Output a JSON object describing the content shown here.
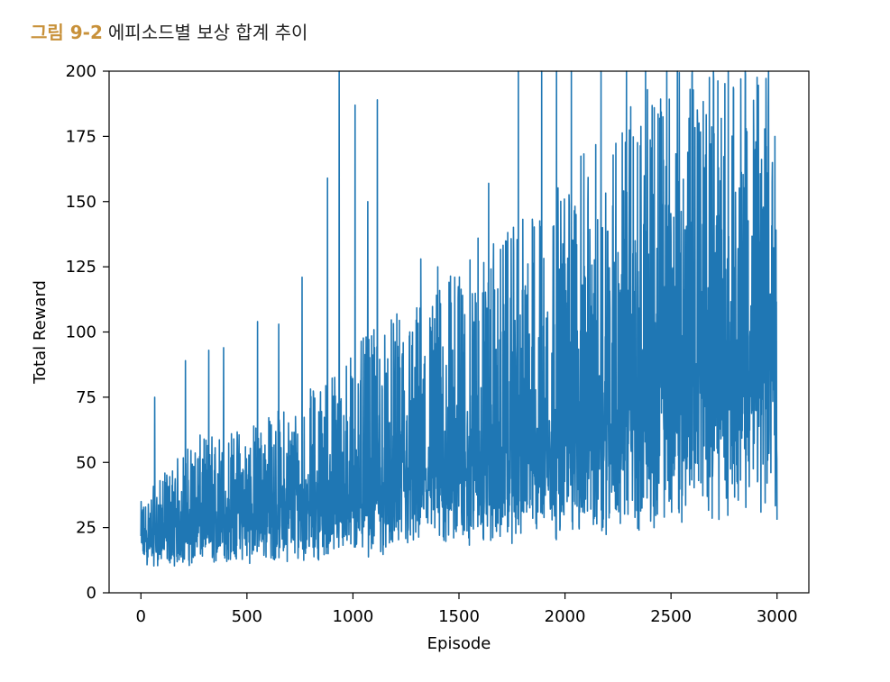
{
  "figure": {
    "number": "그림 9-2",
    "caption": "에피소드별 보상 합계 추이"
  },
  "colors": {
    "line": "#1f77b4",
    "caption_accent": "#c8913a"
  },
  "chart_data": {
    "type": "line",
    "title": "",
    "xlabel": "Episode",
    "ylabel": "Total Reward",
    "xlim": [
      -150,
      3150
    ],
    "ylim": [
      0,
      200
    ],
    "xticks": [
      0,
      500,
      1000,
      1500,
      2000,
      2500,
      3000
    ],
    "yticks": [
      0,
      25,
      50,
      75,
      100,
      125,
      150,
      175,
      200
    ],
    "grid": false,
    "legend": "none",
    "series": [
      {
        "trend": {
          "episodes": [
            0,
            250,
            500,
            750,
            1000,
            1250,
            1500,
            1750,
            2000,
            2250,
            2500,
            2750,
            3000
          ],
          "typical_min": [
            10,
            10,
            11,
            12,
            13,
            14,
            16,
            18,
            20,
            22,
            25,
            28,
            30
          ],
          "typical_mean": [
            20,
            27,
            31,
            34,
            37,
            42,
            48,
            55,
            62,
            70,
            80,
            95,
            100
          ],
          "typical_max": [
            35,
            60,
            65,
            75,
            95,
            110,
            125,
            140,
            160,
            185,
            200,
            200,
            200
          ]
        },
        "notable_peaks": [
          {
            "episode": 65,
            "value": 75
          },
          {
            "episode": 210,
            "value": 89
          },
          {
            "episode": 320,
            "value": 93
          },
          {
            "episode": 390,
            "value": 94
          },
          {
            "episode": 550,
            "value": 104
          },
          {
            "episode": 650,
            "value": 103
          },
          {
            "episode": 760,
            "value": 121
          },
          {
            "episode": 880,
            "value": 159
          },
          {
            "episode": 935,
            "value": 200
          },
          {
            "episode": 1010,
            "value": 187
          },
          {
            "episode": 1070,
            "value": 150
          },
          {
            "episode": 1115,
            "value": 189
          },
          {
            "episode": 1320,
            "value": 128
          },
          {
            "episode": 1400,
            "value": 125
          },
          {
            "episode": 1480,
            "value": 121
          },
          {
            "episode": 1590,
            "value": 136
          },
          {
            "episode": 1640,
            "value": 157
          },
          {
            "episode": 1780,
            "value": 200
          },
          {
            "episode": 1890,
            "value": 200
          },
          {
            "episode": 1960,
            "value": 200
          },
          {
            "episode": 2030,
            "value": 200
          },
          {
            "episode": 2170,
            "value": 200
          },
          {
            "episode": 2290,
            "value": 200
          },
          {
            "episode": 2380,
            "value": 200
          },
          {
            "episode": 2480,
            "value": 200
          },
          {
            "episode": 2530,
            "value": 200
          },
          {
            "episode": 2600,
            "value": 200
          },
          {
            "episode": 2700,
            "value": 200
          },
          {
            "episode": 2770,
            "value": 200
          },
          {
            "episode": 2850,
            "value": 200
          },
          {
            "episode": 2960,
            "value": 200
          },
          {
            "episode": 2990,
            "value": 175
          }
        ],
        "last_value": 28
      }
    ]
  }
}
